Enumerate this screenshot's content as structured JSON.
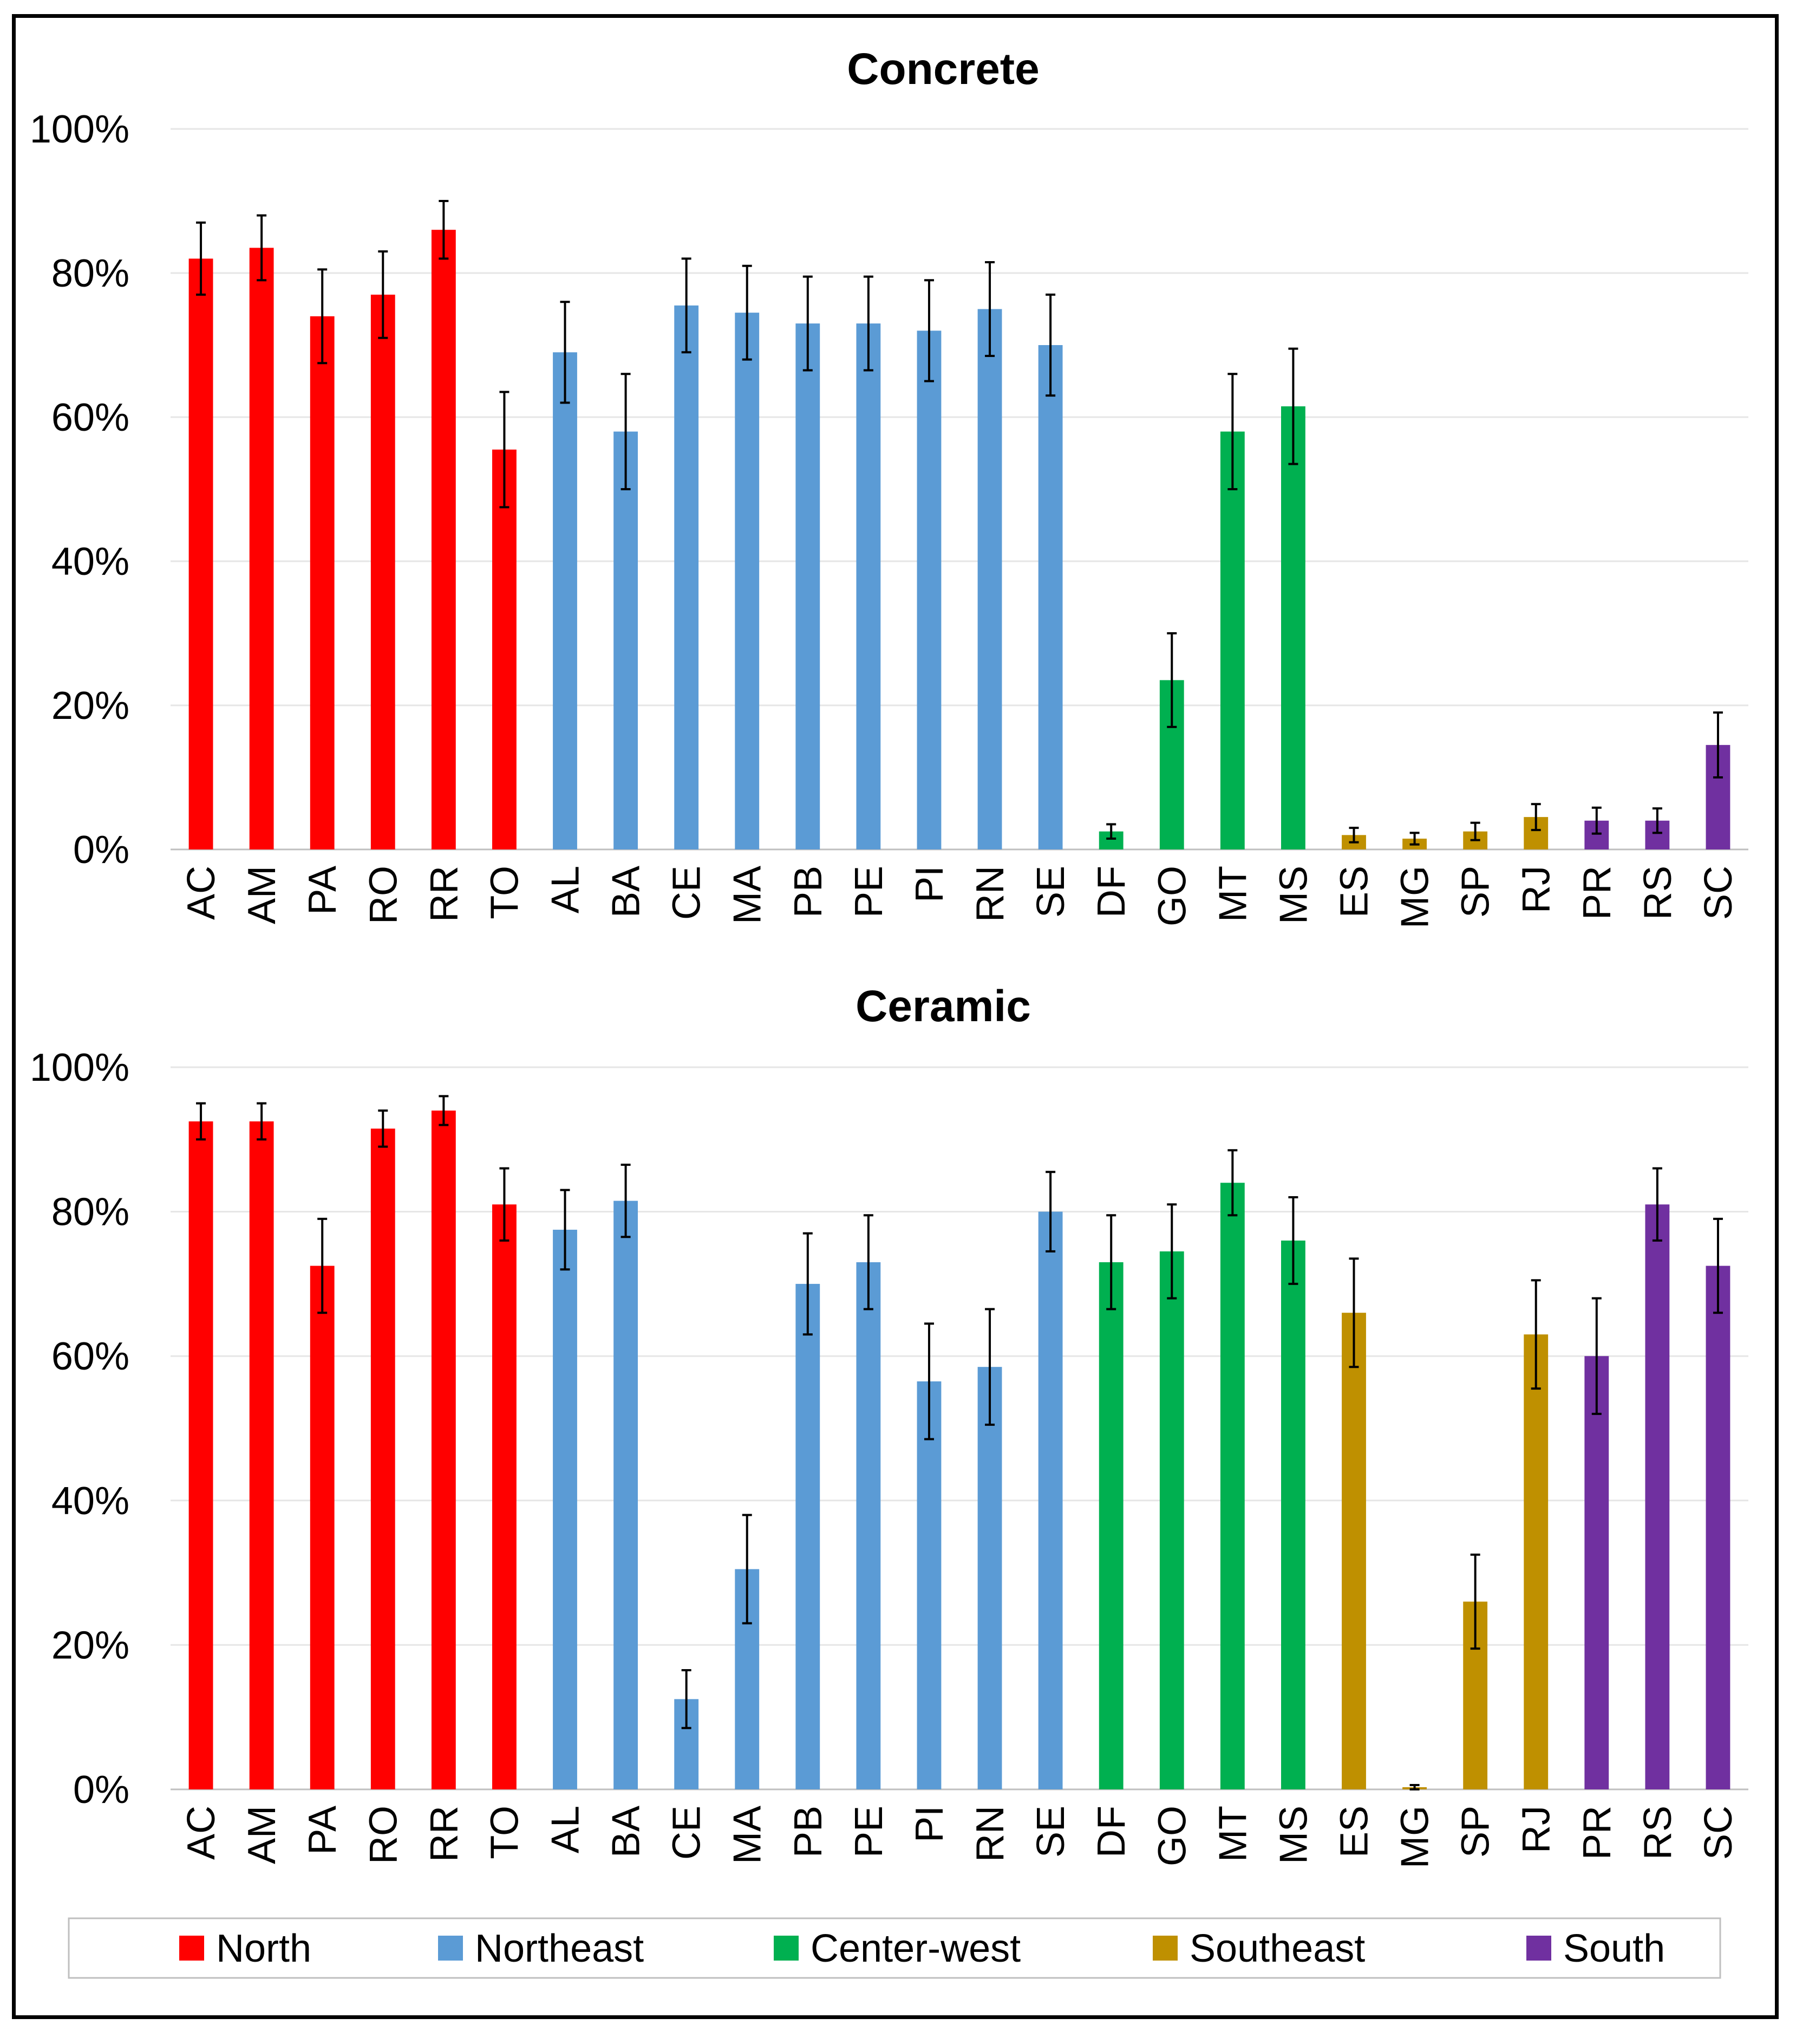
{
  "legend": {
    "items": [
      {
        "name": "North",
        "color": "#ff0000"
      },
      {
        "name": "Northeast",
        "color": "#5b9bd5"
      },
      {
        "name": "Center-west",
        "color": "#00b050"
      },
      {
        "name": "Southeast",
        "color": "#bf9000"
      },
      {
        "name": "South",
        "color": "#7030a0"
      }
    ]
  },
  "chart_data": [
    {
      "type": "bar",
      "title": "Concrete",
      "xlabel": "",
      "ylabel": "",
      "ylim": [
        0,
        100
      ],
      "yticks": [
        "0%",
        "20%",
        "40%",
        "60%",
        "80%",
        "100%"
      ],
      "grid": true,
      "categories": [
        "AC",
        "AM",
        "PA",
        "RO",
        "RR",
        "TO",
        "AL",
        "BA",
        "CE",
        "MA",
        "PB",
        "PE",
        "PI",
        "RN",
        "SE",
        "DF",
        "GO",
        "MT",
        "MS",
        "ES",
        "MG",
        "SP",
        "RJ",
        "PR",
        "RS",
        "SC"
      ],
      "regions": [
        "North",
        "North",
        "North",
        "North",
        "North",
        "North",
        "Northeast",
        "Northeast",
        "Northeast",
        "Northeast",
        "Northeast",
        "Northeast",
        "Northeast",
        "Northeast",
        "Northeast",
        "Center-west",
        "Center-west",
        "Center-west",
        "Center-west",
        "Southeast",
        "Southeast",
        "Southeast",
        "Southeast",
        "South",
        "South",
        "South"
      ],
      "values": [
        82,
        83.5,
        74,
        77,
        86,
        55.5,
        69,
        58,
        75.5,
        74.5,
        73,
        73,
        72,
        75,
        70,
        2.5,
        23.5,
        58,
        61.5,
        2,
        1.5,
        2.5,
        4.5,
        4,
        4,
        14.5
      ],
      "errors": [
        5,
        4.5,
        6.5,
        6,
        4,
        8,
        7,
        8,
        6.5,
        6.5,
        6.5,
        6.5,
        7,
        6.5,
        7,
        1,
        6.5,
        8,
        8,
        1,
        0.8,
        1.2,
        1.8,
        1.8,
        1.7,
        4.5
      ]
    },
    {
      "type": "bar",
      "title": "Ceramic",
      "xlabel": "",
      "ylabel": "",
      "ylim": [
        0,
        100
      ],
      "yticks": [
        "0%",
        "20%",
        "40%",
        "60%",
        "80%",
        "100%"
      ],
      "grid": true,
      "categories": [
        "AC",
        "AM",
        "PA",
        "RO",
        "RR",
        "TO",
        "AL",
        "BA",
        "CE",
        "MA",
        "PB",
        "PE",
        "PI",
        "RN",
        "SE",
        "DF",
        "GO",
        "MT",
        "MS",
        "ES",
        "MG",
        "SP",
        "RJ",
        "PR",
        "RS",
        "SC"
      ],
      "regions": [
        "North",
        "North",
        "North",
        "North",
        "North",
        "North",
        "Northeast",
        "Northeast",
        "Northeast",
        "Northeast",
        "Northeast",
        "Northeast",
        "Northeast",
        "Northeast",
        "Northeast",
        "Center-west",
        "Center-west",
        "Center-west",
        "Center-west",
        "Southeast",
        "Southeast",
        "Southeast",
        "Southeast",
        "South",
        "South",
        "South"
      ],
      "values": [
        92.5,
        92.5,
        72.5,
        91.5,
        94,
        81,
        77.5,
        81.5,
        12.5,
        30.5,
        70,
        73,
        56.5,
        58.5,
        80,
        73,
        74.5,
        84,
        76,
        66,
        0.3,
        26,
        63,
        60,
        81,
        72.5
      ],
      "errors": [
        2.5,
        2.5,
        6.5,
        2.5,
        2,
        5,
        5.5,
        5,
        4,
        7.5,
        7,
        6.5,
        8,
        8,
        5.5,
        6.5,
        6.5,
        4.5,
        6,
        7.5,
        0.3,
        6.5,
        7.5,
        8,
        5,
        6.5
      ]
    }
  ]
}
